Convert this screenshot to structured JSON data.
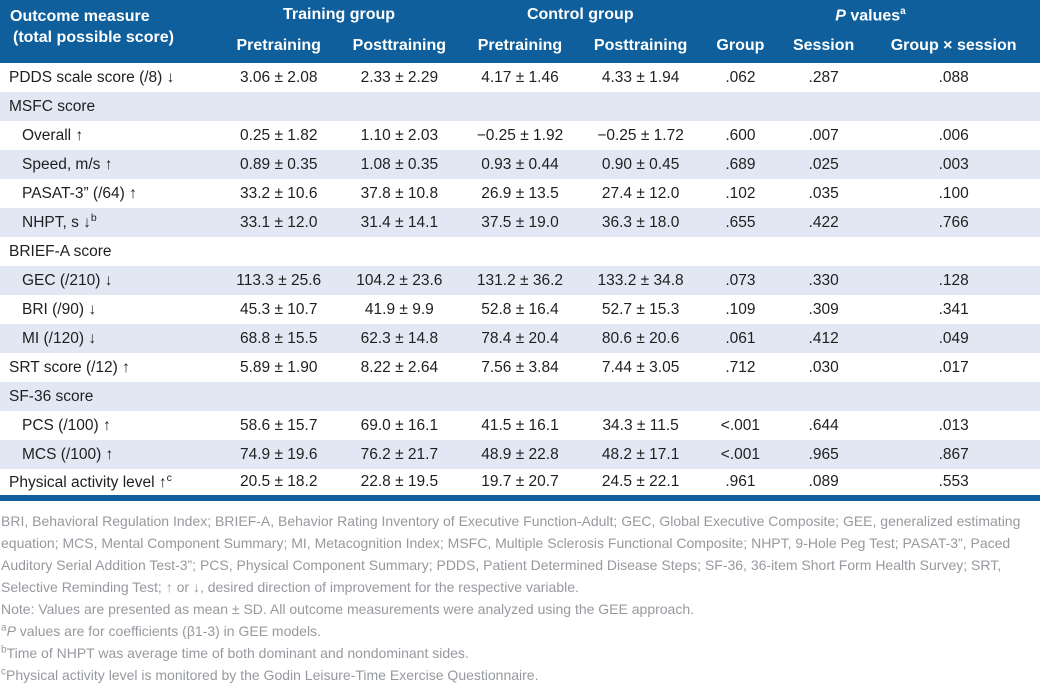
{
  "header": {
    "outcome_line1": "Outcome measure",
    "outcome_line2": "(total possible score)",
    "training_group": "Training group",
    "control_group": "Control group",
    "pvalues_italic": "P",
    "pvalues_rest": " values",
    "pvalues_sup": "a",
    "sub": {
      "training_pre": "Pretraining",
      "training_post": "Posttraining",
      "control_pre": "Pretraining",
      "control_post": "Posttraining",
      "group": "Group",
      "session": "Session",
      "group_x_session": "Group × session"
    }
  },
  "table": {
    "rows": [
      {
        "label": "PDDS scale score (/8) ↓",
        "indent": false,
        "section": false,
        "values": [
          "3.06 ± 2.08",
          "2.33 ± 2.29",
          "4.17 ± 1.46",
          "4.33 ± 1.94",
          ".062",
          ".287",
          ".088"
        ]
      },
      {
        "label": "MSFC score",
        "indent": false,
        "section": true,
        "values": []
      },
      {
        "label": "Overall ↑",
        "indent": true,
        "section": false,
        "values": [
          "0.25 ± 1.82",
          "1.10 ± 2.03",
          "−0.25 ± 1.92",
          "−0.25 ± 1.72",
          ".600",
          ".007",
          ".006"
        ]
      },
      {
        "label": "Speed, m/s ↑",
        "indent": true,
        "section": false,
        "values": [
          "0.89 ± 0.35",
          "1.08 ± 0.35",
          "0.93 ± 0.44",
          "0.90 ± 0.45",
          ".689",
          ".025",
          ".003"
        ]
      },
      {
        "label": "PASAT-3” (/64) ↑",
        "indent": true,
        "section": false,
        "values": [
          "33.2 ± 10.6",
          "37.8 ± 10.8",
          "26.9 ± 13.5",
          "27.4 ± 12.0",
          ".102",
          ".035",
          ".100"
        ]
      },
      {
        "label": "NHPT, s ↓",
        "label_sup": "b",
        "indent": true,
        "section": false,
        "values": [
          "33.1 ± 12.0",
          "31.4 ± 14.1",
          "37.5 ± 19.0",
          "36.3 ± 18.0",
          ".655",
          ".422",
          ".766"
        ]
      },
      {
        "label": "BRIEF-A score",
        "indent": false,
        "section": true,
        "values": []
      },
      {
        "label": "GEC (/210) ↓",
        "indent": true,
        "section": false,
        "values": [
          "113.3 ± 25.6",
          "104.2 ± 23.6",
          "131.2 ± 36.2",
          "133.2 ± 34.8",
          ".073",
          ".330",
          ".128"
        ]
      },
      {
        "label": "BRI (/90) ↓",
        "indent": true,
        "section": false,
        "values": [
          "45.3 ± 10.7",
          "41.9 ± 9.9",
          "52.8 ± 16.4",
          "52.7 ± 15.3",
          ".109",
          ".309",
          ".341"
        ]
      },
      {
        "label": "MI (/120) ↓",
        "indent": true,
        "section": false,
        "values": [
          "68.8 ± 15.5",
          "62.3 ± 14.8",
          "78.4 ± 20.4",
          "80.6 ± 20.6",
          ".061",
          ".412",
          ".049"
        ]
      },
      {
        "label": "SRT score (/12) ↑",
        "indent": false,
        "section": false,
        "values": [
          "5.89 ± 1.90",
          "8.22 ± 2.64",
          "7.56 ± 3.84",
          "7.44 ± 3.05",
          ".712",
          ".030",
          ".017"
        ]
      },
      {
        "label": "SF-36 score",
        "indent": false,
        "section": true,
        "values": []
      },
      {
        "label": "PCS (/100) ↑",
        "indent": true,
        "section": false,
        "values": [
          "58.6 ± 15.7",
          "69.0 ± 16.1",
          "41.5 ± 16.1",
          "34.3 ± 11.5",
          "<.001",
          ".644",
          ".013"
        ]
      },
      {
        "label": "MCS (/100) ↑",
        "indent": true,
        "section": false,
        "values": [
          "74.9 ± 19.6",
          "76.2 ± 21.7",
          "48.9 ± 22.8",
          "48.2 ± 17.1",
          "<.001",
          ".965",
          ".867"
        ]
      },
      {
        "label": "Physical activity level ↑",
        "label_sup": "c",
        "indent": false,
        "section": false,
        "values": [
          "20.5 ± 18.2",
          "22.8 ± 19.5",
          "19.7 ± 20.7",
          "24.5 ± 22.1",
          ".961",
          ".089",
          ".553"
        ]
      }
    ]
  },
  "footnotes": {
    "abbreviations": "BRI, Behavioral Regulation Index; BRIEF-A, Behavior Rating Inventory of Executive Function-Adult; GEC, Global Executive Composite; GEE, generalized estimating equation; MCS, Mental Component Summary; MI, Metacognition Index; MSFC, Multiple Sclerosis Functional Composite; NHPT, 9-Hole Peg Test; PASAT-3”, Paced Auditory Serial Addition Test-3”; PCS, Physical Component Summary; PDDS, Patient Determined Disease Steps; SF-36, 36-item Short Form Health Survey; SRT, Selective Reminding Test; ↑ or ↓, desired direction of improvement for the respective variable.",
    "note": "Note: Values are presented as mean ± SD. All outcome measurements were analyzed using the GEE approach.",
    "fn_a_sup": "a",
    "fn_a_italic": "P",
    "fn_a_text": " values are for coefficients (β1-3) in GEE models.",
    "fn_b_sup": "b",
    "fn_b_text": "Time of NHPT was average time of both dominant and nondominant sides.",
    "fn_c_sup": "c",
    "fn_c_text": "Physical activity level is monitored by the Godin Leisure-Time Exercise Questionnaire."
  },
  "colors": {
    "header_blue": "#0f5f9c",
    "row_stripe": "#e2e8f3",
    "footnote_gray": "#96999e"
  }
}
